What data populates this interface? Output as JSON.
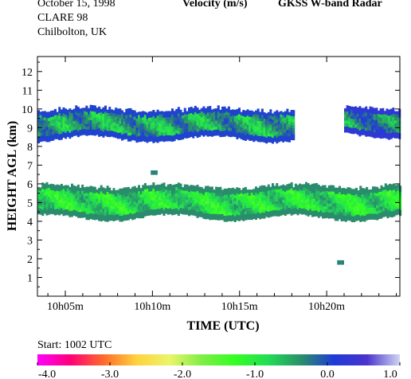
{
  "header": {
    "date": "October  15, 1998",
    "campaign": "CLARE 98",
    "location": "Chilbolton, UK",
    "quantity": "Velocity (m/s)",
    "instrument": "GKSS  W-band Radar"
  },
  "colorbar": {
    "start_label": "Start: 1002 UTC",
    "min": -4.0,
    "max": 1.0,
    "tick_labels": [
      "-4.0",
      "-3.0",
      "-2.0",
      "-1.0",
      "0.0",
      "1.0"
    ],
    "colors": [
      "#ff00ff",
      "#ff0077",
      "#ff6a2a",
      "#ffd23c",
      "#eaf56a",
      "#7dee44",
      "#33ff22",
      "#22dd55",
      "#2a8f6a",
      "#1f3bd8",
      "#4b33cc",
      "#cfd6f2"
    ]
  },
  "chart_data": {
    "type": "heatmap",
    "title": "Velocity (m/s)",
    "xlabel": "TIME (UTC)",
    "ylabel": "HEIGHT AGL (km)",
    "x_ticks": [
      "10h05m",
      "10h10m",
      "10h15m",
      "10h20m"
    ],
    "x_tick_minutes": [
      5,
      10,
      15,
      20
    ],
    "xlim_minutes": [
      3.4,
      24.2
    ],
    "y_ticks": [
      "1",
      "2",
      "3",
      "4",
      "5",
      "6",
      "7",
      "8",
      "9",
      "10",
      "11",
      "12"
    ],
    "ylim": [
      0,
      12.8
    ],
    "colorbar_range": [
      -4.0,
      1.0
    ],
    "layers": [
      {
        "name": "upper-cloud-layer-a",
        "t_start": 3.4,
        "t_end": 18.1,
        "base_km": 8.4,
        "top_km": 9.9,
        "velocity_ms": -0.5
      },
      {
        "name": "upper-cloud-layer-b",
        "t_start": 21.0,
        "t_end": 24.2,
        "base_km": 8.6,
        "top_km": 10.0,
        "velocity_ms": -0.3
      },
      {
        "name": "lower-cloud-layer",
        "t_start": 3.4,
        "t_end": 24.2,
        "base_km": 4.2,
        "top_km": 5.8,
        "velocity_ms": -0.9
      }
    ],
    "isolated_echoes": [
      {
        "t_min": 10.1,
        "height_km": 6.6,
        "velocity_ms": -0.3
      },
      {
        "t_min": 20.8,
        "height_km": 1.8,
        "velocity_ms": -0.3
      }
    ]
  }
}
